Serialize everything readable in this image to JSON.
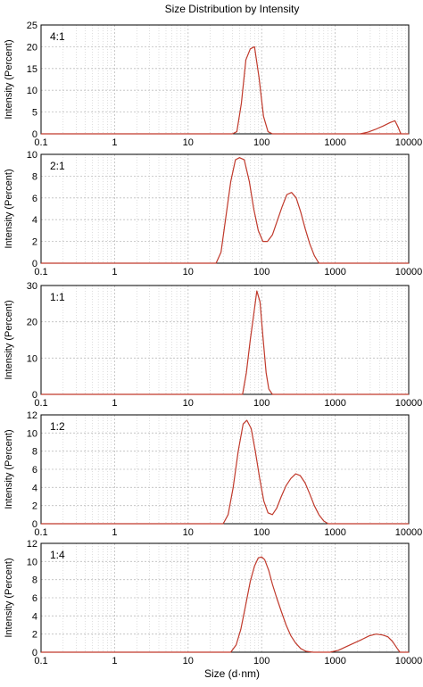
{
  "figure_title": "Size Distribution by Intensity",
  "colors": {
    "line": "#c0392b",
    "grid": "#bdbdbd",
    "frame": "#000000"
  },
  "chart_data": [
    {
      "type": "line",
      "label": "4:1",
      "xscale": "log",
      "xlim": [
        0.1,
        10000
      ],
      "x_ticks": [
        "0.1",
        "1",
        "10",
        "100",
        "1000",
        "10000"
      ],
      "ylim": [
        0,
        25
      ],
      "y_ticks": [
        0,
        5,
        10,
        15,
        20,
        25
      ],
      "ylabel": "Intensity (Percent)",
      "xlabel": "",
      "grid": true,
      "series": [
        {
          "x": [
            0.1,
            35,
            40,
            46,
            53,
            61,
            70,
            80,
            92,
            106,
            122,
            140,
            10000
          ],
          "y": [
            0,
            0,
            0,
            0.5,
            7,
            17,
            19.5,
            20,
            13,
            4,
            0.5,
            0,
            0
          ]
        },
        {
          "x": [
            2200,
            2800,
            3500,
            4500,
            5600,
            6500,
            7200,
            7800
          ],
          "y": [
            0,
            0.4,
            1,
            1.8,
            2.6,
            3,
            1.5,
            0
          ]
        }
      ]
    },
    {
      "type": "line",
      "label": "2:1",
      "xscale": "log",
      "xlim": [
        0.1,
        10000
      ],
      "x_ticks": [
        "0.1",
        "1",
        "10",
        "100",
        "1000",
        "10000"
      ],
      "ylim": [
        0,
        10
      ],
      "y_ticks": [
        0,
        2,
        4,
        6,
        8,
        10
      ],
      "ylabel": "Intensity (Percent)",
      "xlabel": "",
      "grid": true,
      "series": [
        {
          "x": [
            0.1,
            24,
            28,
            33,
            38,
            44,
            50,
            58,
            68,
            78,
            90,
            104,
            120,
            140,
            165,
            190,
            220,
            255,
            295,
            340,
            390,
            450,
            520,
            600,
            10000
          ],
          "y": [
            0,
            0,
            1,
            4.5,
            7.5,
            9.5,
            9.7,
            9.5,
            7.5,
            5,
            3,
            2,
            2,
            2.6,
            4,
            5.2,
            6.3,
            6.5,
            6,
            4.7,
            3.2,
            1.8,
            0.7,
            0,
            0
          ]
        }
      ]
    },
    {
      "type": "line",
      "label": "1:1",
      "xscale": "log",
      "xlim": [
        0.1,
        10000
      ],
      "x_ticks": [
        "0.1",
        "1",
        "10",
        "100",
        "1000",
        "10000"
      ],
      "ylim": [
        0,
        30
      ],
      "y_ticks": [
        0,
        10,
        20,
        30
      ],
      "ylabel": "Intensity (Percent)",
      "xlabel": "",
      "grid": true,
      "series": [
        {
          "x": [
            0.1,
            55,
            62,
            70,
            78,
            86,
            95,
            104,
            115,
            125,
            140,
            10000
          ],
          "y": [
            0,
            0,
            6,
            15,
            22,
            28.5,
            25.5,
            16,
            6,
            1.5,
            0,
            0
          ]
        }
      ]
    },
    {
      "type": "line",
      "label": "1:2",
      "xscale": "log",
      "xlim": [
        0.1,
        10000
      ],
      "x_ticks": [
        "0.1",
        "1",
        "10",
        "100",
        "1000",
        "10000"
      ],
      "ylim": [
        0,
        12
      ],
      "y_ticks": [
        0,
        2,
        4,
        6,
        8,
        10,
        12
      ],
      "ylabel": "Intensity (Percent)",
      "xlabel": "",
      "grid": true,
      "series": [
        {
          "x": [
            0.1,
            30,
            35,
            41,
            48,
            56,
            63,
            72,
            82,
            94,
            107,
            122,
            140,
            160,
            185,
            215,
            250,
            290,
            335,
            390,
            450,
            520,
            600,
            700,
            800,
            10000
          ],
          "y": [
            0,
            0,
            1,
            4,
            8,
            11,
            11.4,
            10.5,
            8,
            5,
            2.5,
            1.2,
            1,
            1.7,
            3,
            4.2,
            5,
            5.5,
            5.3,
            4.5,
            3.3,
            2,
            1,
            0.3,
            0,
            0
          ]
        }
      ]
    },
    {
      "type": "line",
      "label": "1:4",
      "xscale": "log",
      "xlim": [
        0.1,
        10000
      ],
      "x_ticks": [
        "0.1",
        "1",
        "10",
        "100",
        "1000",
        "10000"
      ],
      "ylim": [
        0,
        12
      ],
      "y_ticks": [
        0,
        2,
        4,
        6,
        8,
        10,
        12
      ],
      "ylabel": "Intensity (Percent)",
      "xlabel": "Size (d·nm)",
      "grid": true,
      "series": [
        {
          "x": [
            0.1,
            38,
            45,
            52,
            60,
            70,
            80,
            90,
            100,
            110,
            125,
            140,
            160,
            185,
            215,
            250,
            290,
            340,
            400,
            500,
            650,
            850,
            1100,
            1400,
            1800,
            2300,
            2900,
            3600,
            4400,
            5200,
            6000,
            7000,
            7600,
            10000
          ],
          "y": [
            0,
            0,
            0.8,
            2.5,
            5,
            7.8,
            9.5,
            10.4,
            10.5,
            10.2,
            9,
            7.5,
            6,
            4.5,
            3,
            1.8,
            1,
            0.4,
            0.1,
            0,
            0,
            0,
            0.2,
            0.6,
            1,
            1.4,
            1.8,
            2,
            1.9,
            1.7,
            1.2,
            0.4,
            0,
            0
          ]
        }
      ]
    }
  ]
}
